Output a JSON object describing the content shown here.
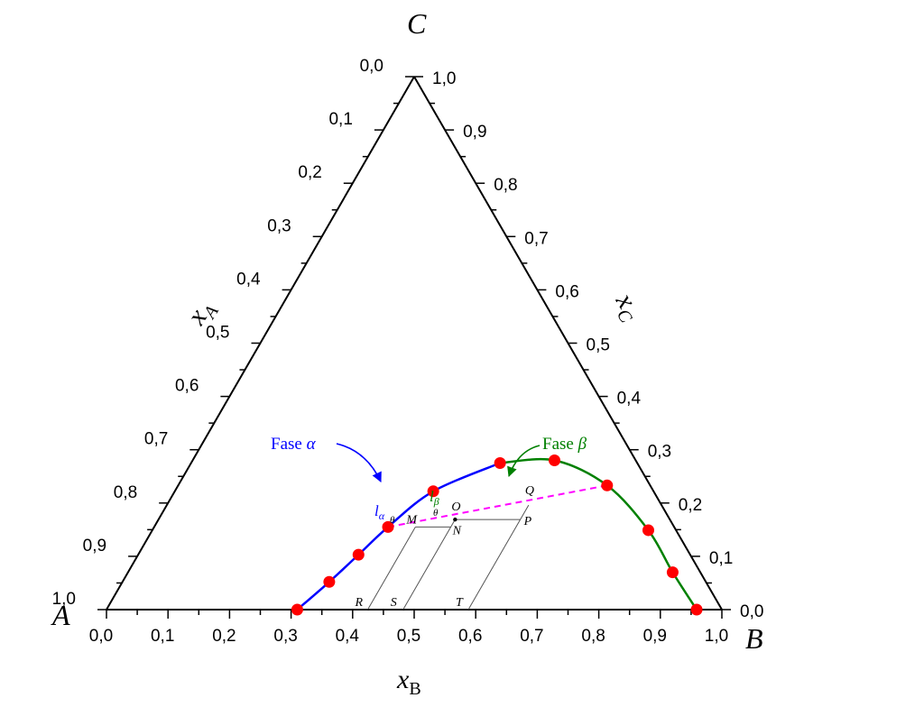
{
  "chart_data": {
    "type": "ternary",
    "vertices": {
      "A": "A",
      "B": "B",
      "C": "C"
    },
    "axes": {
      "xA": {
        "label": "x",
        "subscript": "A",
        "range": [
          0,
          1.0
        ]
      },
      "xB": {
        "label": "x",
        "subscript": "B",
        "range": [
          0,
          1.0
        ]
      },
      "xC": {
        "label": "x",
        "subscript": "C",
        "range": [
          0,
          1.0
        ]
      }
    },
    "ticks_B": [
      "0,0",
      "0,1",
      "0,2",
      "0,3",
      "0,4",
      "0,5",
      "0,6",
      "0,7",
      "0,8",
      "0,9",
      "1,0"
    ],
    "ticks_A": [
      "0,0",
      "0,1",
      "0,2",
      "0,3",
      "0,4",
      "0,5",
      "0,6",
      "0,7",
      "0,8",
      "0,9",
      "1,0"
    ],
    "ticks_C": [
      "0,0",
      "0,1",
      "0,2",
      "0,3",
      "0,4",
      "0,5",
      "0,6",
      "0,7",
      "0,8",
      "0,9",
      "1,0"
    ],
    "series": [
      {
        "name": "Fase α",
        "label_text": "Fase ",
        "label_greek": "α",
        "color": "#0000ff",
        "points": [
          {
            "xB": 0.31,
            "xC": 0.0
          },
          {
            "xB": 0.336,
            "xC": 0.052
          },
          {
            "xB": 0.358,
            "xC": 0.103
          },
          {
            "xB": 0.38,
            "xC": 0.155
          },
          {
            "xB": 0.42,
            "xC": 0.222
          },
          {
            "xB": 0.502,
            "xC": 0.275
          }
        ]
      },
      {
        "name": "Fase β",
        "label_text": "Fase ",
        "label_greek": "β",
        "color": "#008000",
        "points": [
          {
            "xB": 0.502,
            "xC": 0.275
          },
          {
            "xB": 0.588,
            "xC": 0.28
          },
          {
            "xB": 0.697,
            "xC": 0.233
          },
          {
            "xB": 0.806,
            "xC": 0.149
          },
          {
            "xB": 0.885,
            "xC": 0.07
          },
          {
            "xB": 0.959,
            "xC": 0.0
          }
        ]
      }
    ],
    "marker_color": "#ff0000",
    "tie_line": {
      "color": "#ff00ff",
      "from": {
        "xB": 0.38,
        "xC": 0.155
      },
      "to": {
        "xB": 0.697,
        "xC": 0.233
      }
    },
    "construction_points": {
      "M": {
        "xB": 0.4245,
        "xC": 0.155
      },
      "N": {
        "xB": 0.482,
        "xC": 0.155
      },
      "O": {
        "xB": 0.482,
        "xC": 0.169
      },
      "P": {
        "xB": 0.588,
        "xC": 0.169
      },
      "Q": {
        "xB": 0.588,
        "xC": 0.196
      },
      "R": {
        "xB": 0.4245,
        "xC": 0.0
      },
      "S": {
        "xB": 0.482,
        "xC": 0.0
      },
      "T": {
        "xB": 0.588,
        "xC": 0.0
      }
    },
    "annotations": {
      "l_alpha": {
        "base": "l",
        "sub": "α",
        "color": "#0000ff"
      },
      "l_beta": {
        "base": "l",
        "sub": "β",
        "color": "#008000"
      },
      "theta": "θ"
    }
  }
}
